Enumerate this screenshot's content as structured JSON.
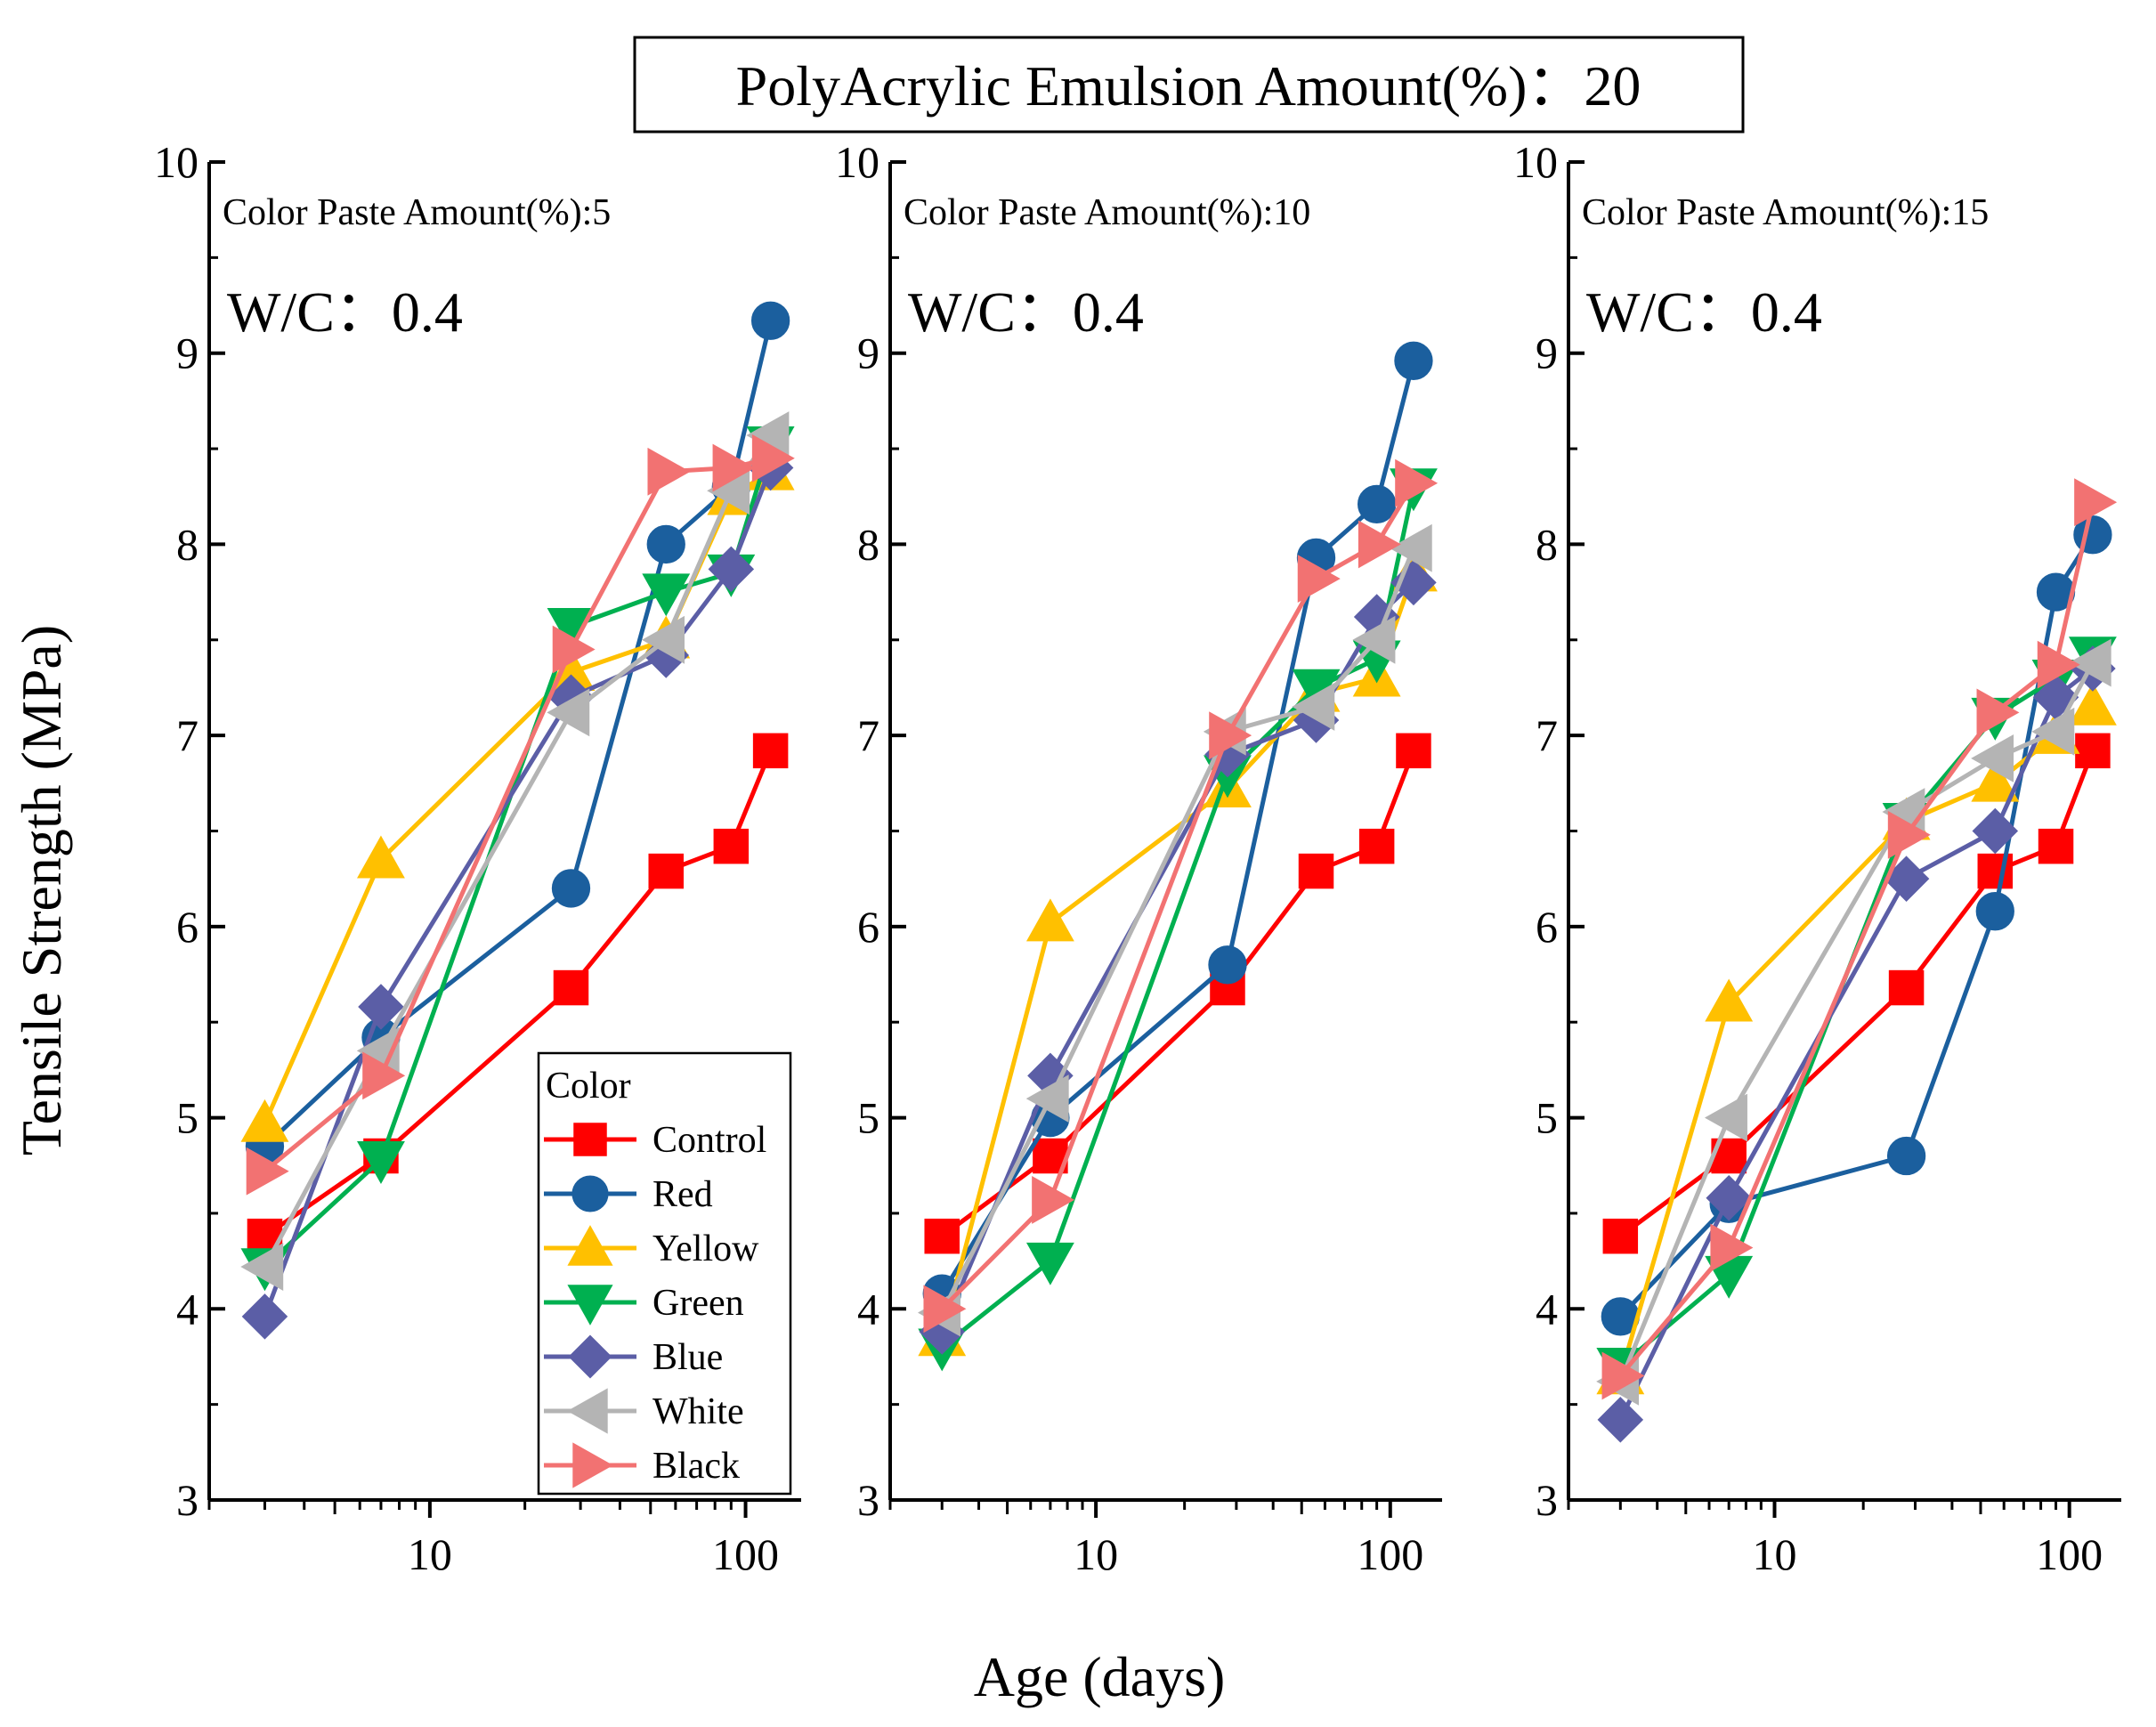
{
  "figure": {
    "title": "PolyAcrylic Emulsion Amount(%)：20",
    "ylabel": "Tensile Strength (MPa)",
    "xlabel": "Age (days)"
  },
  "legend": {
    "title": "Color",
    "placement": "bottom-right of first panel"
  },
  "series_styles": [
    {
      "name": "Control",
      "color": "#ff0000",
      "marker": "square"
    },
    {
      "name": "Red",
      "color": "#1b5f9e",
      "marker": "circle"
    },
    {
      "name": "Yellow",
      "color": "#ffc000",
      "marker": "triangle-up"
    },
    {
      "name": "Green",
      "color": "#00b050",
      "marker": "triangle-down"
    },
    {
      "name": "Blue",
      "color": "#5b5ea6",
      "marker": "diamond"
    },
    {
      "name": "White",
      "color": "#b4b4b4",
      "marker": "triangle-left"
    },
    {
      "name": "Black",
      "color": "#f27272",
      "marker": "triangle-right"
    }
  ],
  "chart_data": [
    {
      "type": "line",
      "title": "Color Paste Amount(%):5",
      "annotation": "W/C：0.4",
      "xscale": "log",
      "xlim": [
        2,
        150
      ],
      "ylim": [
        3,
        10
      ],
      "xticks": [
        10,
        100
      ],
      "xtick_labels": [
        "10",
        "100"
      ],
      "yticks": [
        3,
        4,
        5,
        6,
        7,
        8,
        9,
        10
      ],
      "ytick_labels": [
        "3",
        "4",
        "5",
        "6",
        "7",
        "8",
        "9",
        "10"
      ],
      "x": [
        3,
        7,
        28,
        56,
        90,
        120
      ],
      "series": [
        {
          "name": "Control",
          "values": [
            4.38,
            4.8,
            5.68,
            6.29,
            6.42,
            6.92
          ]
        },
        {
          "name": "Red",
          "values": [
            4.85,
            5.42,
            6.2,
            8.0,
            8.3,
            9.17
          ]
        },
        {
          "name": "Yellow",
          "values": [
            4.97,
            6.35,
            7.33,
            7.5,
            8.25,
            8.38
          ]
        },
        {
          "name": "Green",
          "values": [
            4.22,
            4.78,
            7.57,
            7.75,
            7.85,
            8.52
          ]
        },
        {
          "name": "Blue",
          "values": [
            3.96,
            5.58,
            7.2,
            7.42,
            7.87,
            8.4
          ]
        },
        {
          "name": "White",
          "values": [
            4.22,
            5.35,
            7.12,
            7.5,
            8.28,
            8.57
          ]
        },
        {
          "name": "Black",
          "values": [
            4.72,
            5.22,
            7.45,
            8.38,
            8.4,
            8.45
          ]
        }
      ]
    },
    {
      "type": "line",
      "title": "Color Paste Amount(%):10",
      "annotation": "W/C：0.4",
      "xscale": "log",
      "xlim": [
        2,
        150
      ],
      "ylim": [
        3,
        10
      ],
      "xticks": [
        10,
        100
      ],
      "xtick_labels": [
        "10",
        "100"
      ],
      "yticks": [
        3,
        4,
        5,
        6,
        7,
        8,
        9,
        10
      ],
      "ytick_labels": [
        "3",
        "4",
        "5",
        "6",
        "7",
        "8",
        "9",
        "10"
      ],
      "x": [
        3,
        7,
        28,
        56,
        90,
        120
      ],
      "series": [
        {
          "name": "Control",
          "values": [
            4.38,
            4.8,
            5.68,
            6.29,
            6.42,
            6.92
          ]
        },
        {
          "name": "Red",
          "values": [
            4.08,
            5.0,
            5.8,
            7.93,
            8.21,
            8.96
          ]
        },
        {
          "name": "Yellow",
          "values": [
            3.85,
            6.02,
            6.72,
            7.22,
            7.3,
            7.85
          ]
        },
        {
          "name": "Green",
          "values": [
            3.8,
            4.25,
            6.8,
            7.25,
            7.4,
            8.3
          ]
        },
        {
          "name": "Blue",
          "values": [
            3.88,
            5.22,
            6.9,
            7.08,
            7.62,
            7.8
          ]
        },
        {
          "name": "White",
          "values": [
            3.98,
            5.1,
            7.02,
            7.15,
            7.5,
            7.98
          ]
        },
        {
          "name": "Black",
          "values": [
            4.0,
            4.57,
            7.0,
            7.82,
            8.0,
            8.32
          ]
        }
      ]
    },
    {
      "type": "line",
      "title": "Color Paste Amount(%):15",
      "annotation": "W/C：0.4",
      "xscale": "log",
      "xlim": [
        2,
        150
      ],
      "ylim": [
        3,
        10
      ],
      "xticks": [
        10,
        100
      ],
      "xtick_labels": [
        "10",
        "100"
      ],
      "yticks": [
        3,
        4,
        5,
        6,
        7,
        8,
        9,
        10
      ],
      "ytick_labels": [
        "3",
        "4",
        "5",
        "6",
        "7",
        "8",
        "9",
        "10"
      ],
      "x": [
        3,
        7,
        28,
        56,
        90,
        120
      ],
      "series": [
        {
          "name": "Control",
          "values": [
            4.38,
            4.8,
            5.68,
            6.29,
            6.42,
            6.92
          ]
        },
        {
          "name": "Red",
          "values": [
            3.96,
            4.55,
            4.8,
            6.08,
            7.75,
            8.05
          ]
        },
        {
          "name": "Yellow",
          "values": [
            3.65,
            5.6,
            6.55,
            6.75,
            7.0,
            7.15
          ]
        },
        {
          "name": "Green",
          "values": [
            3.7,
            4.18,
            6.55,
            7.1,
            7.3,
            7.42
          ]
        },
        {
          "name": "Blue",
          "values": [
            3.42,
            4.58,
            6.25,
            6.5,
            7.2,
            7.35
          ]
        },
        {
          "name": "White",
          "values": [
            3.62,
            5.0,
            6.6,
            6.88,
            7.02,
            7.38
          ]
        },
        {
          "name": "Black",
          "values": [
            3.65,
            4.32,
            6.48,
            7.12,
            7.37,
            8.22
          ]
        }
      ]
    }
  ]
}
